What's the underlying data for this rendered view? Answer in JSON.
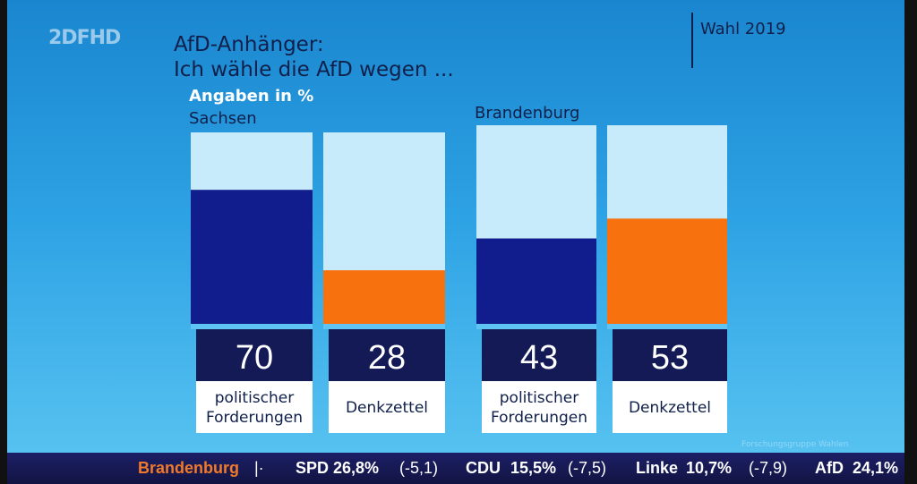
{
  "channel": {
    "logo": "2DFHD"
  },
  "header": {
    "title_line1": "AfD-Anhänger:",
    "title_line2": "Ich wähle die AfD wegen ...",
    "election": "Wahl 2019"
  },
  "chart_data": {
    "type": "bar",
    "units": "Angaben in %",
    "ylim": [
      0,
      100
    ],
    "categories": [
      "politischer Forderungen",
      "Denkzettel"
    ],
    "colors": {
      "politischer Forderungen": "#111d8c",
      "Denkzettel": "#f7720f",
      "background": "#c8ebfb",
      "value_box": "#131a55"
    },
    "panels": [
      {
        "name": "Sachsen",
        "values": [
          70,
          28
        ]
      },
      {
        "name": "Brandenburg",
        "values": [
          43,
          53
        ]
      }
    ]
  },
  "ticker": {
    "region": "Brandenburg",
    "sep": "|·",
    "items": [
      {
        "party": "SPD",
        "value": "26,8%",
        "change": "(-5,1)"
      },
      {
        "party": "CDU",
        "value": "15,5%",
        "change": "(-7,5)"
      },
      {
        "party": "Linke",
        "value": "10,7%",
        "change": "(-7,9)"
      },
      {
        "party": "AfD",
        "value": "24,1%",
        "change": ""
      }
    ],
    "source": "Forschungsgruppe Wahlen"
  }
}
